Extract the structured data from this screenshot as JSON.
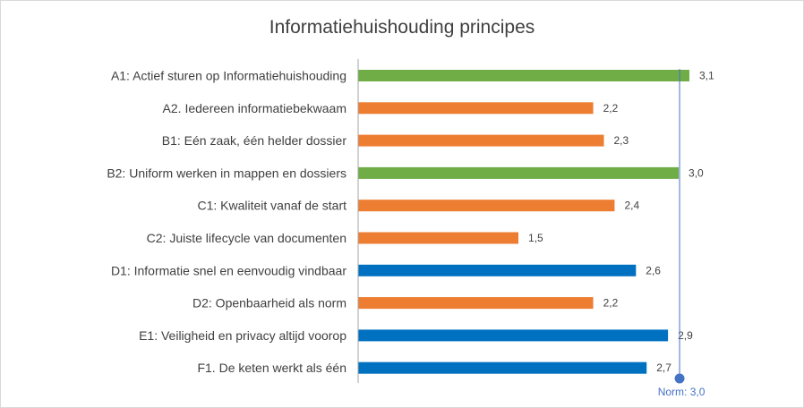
{
  "chart_data": {
    "type": "bar",
    "orientation": "horizontal",
    "title": "Informatiehuishouding principes",
    "categories": [
      "A1: Actief sturen op Informatiehuishouding",
      "A2. Iedereen informatiebekwaam",
      "B1: Eén zaak, één helder dossier",
      "B2: Uniform werken in mappen en dossiers",
      "C1: Kwaliteit vanaf de start",
      "C2: Juiste lifecycle van documenten",
      "D1: Informatie snel en eenvoudig vindbaar",
      "D2: Openbaarheid als norm",
      "E1: Veiligheid en privacy altijd voorop",
      "F1. De keten werkt als één"
    ],
    "values": [
      3.1,
      2.2,
      2.3,
      3.0,
      2.4,
      1.5,
      2.6,
      2.2,
      2.9,
      2.7
    ],
    "value_labels": [
      "3,1",
      "2,2",
      "2,3",
      "3,0",
      "2,4",
      "1,5",
      "2,6",
      "2,2",
      "2,9",
      "2,7"
    ],
    "bar_colors": [
      "#70ad47",
      "#ed7d31",
      "#ed7d31",
      "#70ad47",
      "#ed7d31",
      "#ed7d31",
      "#0070c0",
      "#ed7d31",
      "#0070c0",
      "#0070c0"
    ],
    "xlim": [
      0,
      3.5
    ],
    "grid": false,
    "legend": "none",
    "norm": {
      "value": 3.0,
      "label": "Norm: 3,0",
      "color": "#4472c4"
    }
  }
}
